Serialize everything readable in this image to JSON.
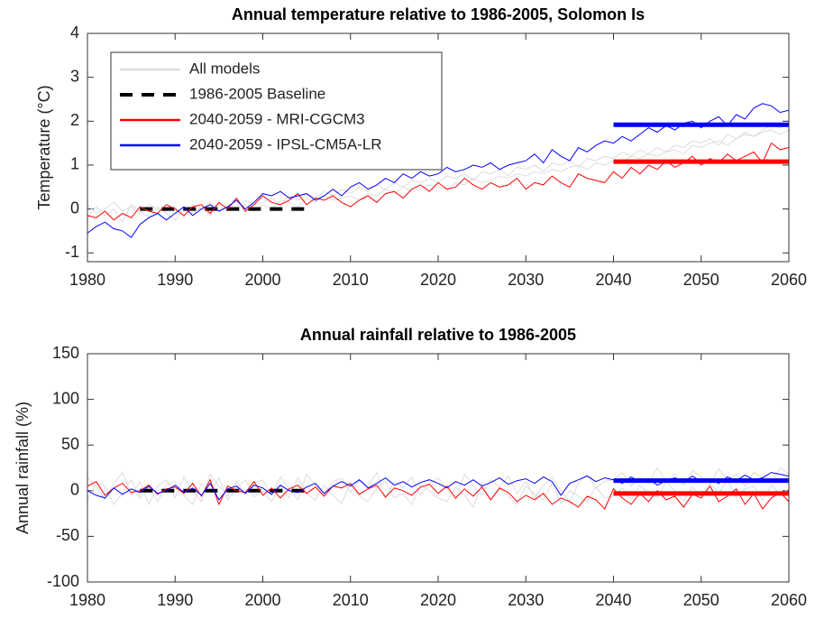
{
  "chart_data": [
    {
      "type": "line",
      "title": "Annual temperature relative to 1986-2005, Solomon Is",
      "ylabel": "Temperature (°C)",
      "x": [
        1980,
        1981,
        1982,
        1983,
        1984,
        1985,
        1986,
        1987,
        1988,
        1989,
        1990,
        1991,
        1992,
        1993,
        1994,
        1995,
        1996,
        1997,
        1998,
        1999,
        2000,
        2001,
        2002,
        2003,
        2004,
        2005,
        2006,
        2007,
        2008,
        2009,
        2010,
        2011,
        2012,
        2013,
        2014,
        2015,
        2016,
        2017,
        2018,
        2019,
        2020,
        2021,
        2022,
        2023,
        2024,
        2025,
        2026,
        2027,
        2028,
        2029,
        2030,
        2031,
        2032,
        2033,
        2034,
        2035,
        2036,
        2037,
        2038,
        2039,
        2040,
        2041,
        2042,
        2043,
        2044,
        2045,
        2046,
        2047,
        2048,
        2049,
        2050,
        2051,
        2052,
        2053,
        2054,
        2055,
        2056,
        2057,
        2058,
        2059,
        2060
      ],
      "xlim": [
        1980,
        2060
      ],
      "xticks": [
        1980,
        1990,
        2000,
        2010,
        2020,
        2030,
        2040,
        2050,
        2060
      ],
      "ylim": [
        -1.2,
        4
      ],
      "yticks": [
        -1,
        0,
        1,
        2,
        3,
        4
      ],
      "legend": "upper left",
      "series": [
        {
          "name": "All models",
          "color": "#dcdcdc",
          "values": [
            [
              0.1,
              -0.1,
              0.0,
              0.15,
              -0.05,
              0.05,
              -0.1,
              0.1,
              0.0,
              -0.05,
              0.05,
              -0.2,
              0.1,
              0.0,
              0.15,
              -0.05,
              0.1,
              0.05,
              0.2,
              0.1,
              0.15,
              0.25,
              0.1,
              0.3,
              0.2,
              0.35,
              0.25,
              0.4,
              0.3,
              0.45,
              0.35,
              0.5,
              0.4,
              0.55,
              0.45,
              0.6,
              0.5,
              0.65,
              0.6,
              0.7,
              0.6,
              0.75,
              0.7,
              0.8,
              0.65,
              0.85,
              0.8,
              0.9,
              0.75,
              0.95,
              0.9,
              1.0,
              0.85,
              1.05,
              1.0,
              1.1,
              0.95,
              1.15,
              1.1,
              1.2,
              1.15,
              1.3,
              1.2,
              1.35,
              1.25,
              1.4,
              1.3,
              1.45,
              1.4,
              1.55,
              1.5,
              1.6,
              1.45,
              1.7,
              1.6,
              1.75,
              1.65,
              1.8,
              1.9,
              1.85,
              1.95
            ],
            [
              -0.2,
              0.05,
              -0.15,
              0.0,
              -0.3,
              0.1,
              -0.05,
              -0.2,
              0.05,
              -0.1,
              -0.25,
              0.0,
              -0.1,
              0.05,
              -0.15,
              0.1,
              -0.05,
              0.0,
              0.1,
              -0.05,
              0.1,
              0.0,
              0.2,
              0.15,
              0.05,
              0.25,
              0.15,
              0.3,
              0.2,
              0.25,
              0.3,
              0.2,
              0.35,
              0.3,
              0.45,
              0.35,
              0.5,
              0.4,
              0.45,
              0.55,
              0.5,
              0.45,
              0.6,
              0.55,
              0.7,
              0.6,
              0.65,
              0.75,
              0.7,
              0.8,
              0.75,
              0.85,
              0.8,
              0.9,
              0.85,
              0.95,
              1.0,
              0.9,
              1.05,
              1.0,
              1.1,
              1.05,
              1.2,
              1.15,
              1.25,
              1.2,
              1.3,
              1.35,
              1.25,
              1.45,
              1.4,
              1.5,
              1.55,
              1.45,
              1.6,
              1.7,
              1.65,
              1.75,
              1.8,
              1.7,
              1.8
            ]
          ]
        },
        {
          "name": "1986-2005 Baseline",
          "color": "#000000",
          "dash": true,
          "x": [
            1986,
            2005
          ],
          "values": [
            0,
            0
          ]
        },
        {
          "name": "2040-2059 - MRI-CGCM3",
          "color": "#ff0000",
          "mean": {
            "x": [
              2040,
              2060
            ],
            "value": 1.08
          },
          "values": [
            -0.15,
            -0.2,
            -0.05,
            -0.25,
            -0.1,
            -0.2,
            0.05,
            -0.05,
            -0.1,
            0.1,
            0.0,
            -0.15,
            0.05,
            0.1,
            -0.1,
            0.15,
            0.0,
            0.25,
            -0.05,
            0.1,
            0.3,
            0.15,
            0.1,
            0.2,
            0.35,
            0.1,
            0.25,
            0.2,
            0.3,
            0.15,
            0.05,
            0.2,
            0.3,
            0.15,
            0.35,
            0.4,
            0.25,
            0.45,
            0.55,
            0.4,
            0.6,
            0.45,
            0.5,
            0.7,
            0.55,
            0.45,
            0.6,
            0.5,
            0.55,
            0.7,
            0.45,
            0.6,
            0.55,
            0.75,
            0.6,
            0.5,
            0.8,
            0.7,
            0.65,
            0.6,
            0.85,
            0.7,
            0.95,
            0.8,
            1.0,
            0.9,
            1.1,
            0.95,
            1.05,
            1.2,
            1.0,
            1.15,
            1.05,
            1.25,
            1.1,
            1.2,
            1.3,
            1.05,
            1.5,
            1.35,
            1.4
          ]
        },
        {
          "name": "2040-2059 - IPSL-CM5A-LR",
          "color": "#0000ff",
          "mean": {
            "x": [
              2040,
              2060
            ],
            "value": 1.92
          },
          "values": [
            -0.55,
            -0.4,
            -0.3,
            -0.45,
            -0.5,
            -0.65,
            -0.35,
            -0.2,
            -0.1,
            -0.25,
            -0.1,
            0.05,
            -0.15,
            0.0,
            0.1,
            -0.05,
            0.05,
            0.2,
            0.0,
            0.15,
            0.35,
            0.3,
            0.4,
            0.25,
            0.3,
            0.35,
            0.2,
            0.3,
            0.45,
            0.3,
            0.5,
            0.6,
            0.45,
            0.55,
            0.7,
            0.6,
            0.8,
            0.7,
            0.85,
            0.75,
            0.8,
            0.95,
            0.85,
            0.9,
            1.0,
            0.95,
            1.05,
            0.9,
            1.0,
            1.05,
            1.1,
            1.25,
            1.05,
            1.35,
            1.2,
            1.1,
            1.4,
            1.3,
            1.45,
            1.55,
            1.5,
            1.65,
            1.55,
            1.7,
            1.85,
            1.75,
            1.9,
            1.8,
            1.95,
            2.0,
            1.85,
            2.0,
            2.1,
            1.9,
            2.15,
            2.05,
            2.3,
            2.4,
            2.35,
            2.2,
            2.25
          ]
        }
      ]
    },
    {
      "type": "line",
      "title": "Annual rainfall relative to 1986-2005",
      "ylabel": "Annual rainfall (%)",
      "x": [
        1980,
        1981,
        1982,
        1983,
        1984,
        1985,
        1986,
        1987,
        1988,
        1989,
        1990,
        1991,
        1992,
        1993,
        1994,
        1995,
        1996,
        1997,
        1998,
        1999,
        2000,
        2001,
        2002,
        2003,
        2004,
        2005,
        2006,
        2007,
        2008,
        2009,
        2010,
        2011,
        2012,
        2013,
        2014,
        2015,
        2016,
        2017,
        2018,
        2019,
        2020,
        2021,
        2022,
        2023,
        2024,
        2025,
        2026,
        2027,
        2028,
        2029,
        2030,
        2031,
        2032,
        2033,
        2034,
        2035,
        2036,
        2037,
        2038,
        2039,
        2040,
        2041,
        2042,
        2043,
        2044,
        2045,
        2046,
        2047,
        2048,
        2049,
        2050,
        2051,
        2052,
        2053,
        2054,
        2055,
        2056,
        2057,
        2058,
        2059,
        2060
      ],
      "xlim": [
        1980,
        2060
      ],
      "xticks": [
        1980,
        1990,
        2000,
        2010,
        2020,
        2030,
        2040,
        2050,
        2060
      ],
      "ylim": [
        -100,
        150
      ],
      "yticks": [
        -100,
        -50,
        0,
        50,
        100,
        150
      ],
      "series": [
        {
          "color": "#dcdcdc",
          "values": [
            [
              15,
              5,
              -10,
              8,
              20,
              -5,
              10,
              -15,
              5,
              12,
              -8,
              15,
              0,
              -12,
              18,
              5,
              -6,
              10,
              -3,
              8,
              12,
              -5,
              15,
              2,
              -10,
              18,
              6,
              -4,
              10,
              14,
              -2,
              12,
              5,
              20,
              -8,
              10,
              3,
              15,
              -5,
              8,
              14,
              2,
              -10,
              18,
              6,
              -5,
              12,
              4,
              16,
              -3,
              10,
              -8,
              6,
              15,
              0,
              -12,
              8,
              18,
              3,
              10,
              12,
              20,
              5,
              15,
              8,
              25,
              10,
              18,
              6,
              22,
              15,
              8,
              24,
              12,
              18,
              5,
              20,
              14,
              10,
              25,
              18
            ],
            [
              -10,
              8,
              5,
              -15,
              -3,
              12,
              -8,
              4,
              -12,
              6,
              10,
              -5,
              -15,
              8,
              -2,
              14,
              -10,
              3,
              12,
              -7,
              0,
              -12,
              5,
              -8,
              14,
              -3,
              -10,
              6,
              -5,
              -14,
              8,
              -6,
              -12,
              3,
              10,
              -8,
              -3,
              -15,
              6,
              0,
              -8,
              -12,
              4,
              -5,
              -18,
              8,
              -10,
              2,
              -6,
              -15,
              5,
              -4,
              -10,
              8,
              -14,
              0,
              -6,
              -12,
              4,
              -8,
              -5,
              3,
              -10,
              6,
              -2,
              -8,
              10,
              0,
              -12,
              4,
              -6,
              8,
              -3,
              12,
              -8,
              2,
              5,
              -10,
              6,
              -4,
              2
            ]
          ]
        },
        {
          "color": "#000000",
          "dash": true,
          "x": [
            1986,
            2005
          ],
          "values": [
            0,
            0
          ]
        },
        {
          "color": "#ff0000",
          "mean": {
            "x": [
              2040,
              2060
            ],
            "value": -3
          },
          "values": [
            5,
            10,
            -5,
            3,
            8,
            -2,
            0,
            6,
            -4,
            2,
            4,
            -3,
            8,
            -6,
            12,
            -15,
            5,
            0,
            -2,
            10,
            -5,
            3,
            -8,
            2,
            6,
            -3,
            4,
            -6,
            5,
            3,
            8,
            -4,
            2,
            6,
            -7,
            3,
            0,
            -5,
            4,
            7,
            -3,
            5,
            -8,
            2,
            -6,
            4,
            -10,
            3,
            -2,
            -12,
            -5,
            -10,
            -3,
            -15,
            -8,
            -12,
            -18,
            -6,
            -10,
            -20,
            2,
            -8,
            -15,
            -3,
            -12,
            0,
            -10,
            -6,
            -18,
            -4,
            -8,
            5,
            -12,
            -6,
            2,
            -15,
            -3,
            -20,
            -8,
            -2,
            -12
          ]
        },
        {
          "color": "#0000ff",
          "mean": {
            "x": [
              2040,
              2060
            ],
            "value": 11
          },
          "values": [
            0,
            -5,
            -8,
            3,
            -4,
            2,
            -2,
            5,
            -3,
            0,
            6,
            -2,
            3,
            -5,
            8,
            -10,
            2,
            5,
            -3,
            6,
            3,
            -4,
            6,
            0,
            -2,
            4,
            8,
            -3,
            5,
            10,
            5,
            12,
            3,
            8,
            14,
            6,
            10,
            4,
            9,
            12,
            8,
            3,
            10,
            6,
            12,
            5,
            9,
            14,
            7,
            11,
            13,
            8,
            15,
            10,
            -5,
            8,
            12,
            16,
            10,
            14,
            12,
            8,
            15,
            10,
            13,
            6,
            11,
            14,
            9,
            16,
            10,
            13,
            8,
            15,
            11,
            17,
            12,
            14,
            20,
            18,
            16
          ]
        }
      ]
    }
  ]
}
